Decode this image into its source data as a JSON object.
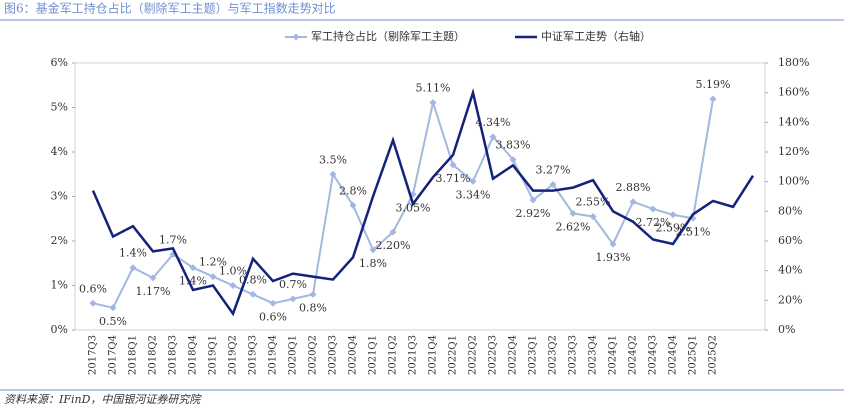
{
  "chart_data": {
    "type": "line",
    "title": "图6：基金军工持仓占比（剔除军工主题）与军工指数走势对比",
    "source": "资料来源：IFinD，中国银河证券研究院",
    "categories": [
      "2017Q3",
      "2017Q4",
      "2018Q1",
      "2018Q2",
      "2018Q3",
      "2018Q4",
      "2019Q1",
      "2019Q2",
      "2019Q3",
      "2019Q4",
      "2020Q1",
      "2020Q2",
      "2020Q3",
      "2020Q4",
      "2021Q1",
      "2021Q2",
      "2021Q3",
      "2021Q4",
      "2022Q1",
      "2022Q2",
      "2022Q3",
      "2022Q4",
      "2023Q1",
      "2023Q2",
      "2023Q3",
      "2023Q4",
      "2024Q1",
      "2024Q2",
      "2024Q3",
      "2024Q4",
      "2025Q1",
      "2025Q2",
      null,
      null
    ],
    "series": [
      {
        "name": "军工持仓占比（剔除军工主题）",
        "color": "#a3b8e0",
        "axis": "y",
        "values": [
          0.6,
          0.5,
          1.4,
          1.17,
          1.7,
          1.4,
          1.2,
          1.0,
          0.8,
          0.6,
          0.7,
          0.8,
          3.5,
          2.8,
          1.8,
          2.2,
          3.05,
          5.11,
          3.71,
          3.34,
          4.34,
          3.83,
          2.92,
          3.27,
          2.62,
          2.55,
          1.93,
          2.88,
          2.72,
          2.59,
          2.51,
          5.19,
          null,
          null
        ],
        "value_labels": [
          "0.6%",
          "0.5%",
          "1.4%",
          "1.17%",
          "1.7%",
          "1.4%",
          "1.2%",
          "1.0%",
          "0.8%",
          "0.6%",
          "0.7%",
          "0.8%",
          "3.5%",
          "2.8%",
          "1.8%",
          "2.20%",
          "3.05%",
          "5.11%",
          "3.71%",
          "3.34%",
          "4.34%",
          "3.83%",
          "2.92%",
          "3.27%",
          "2.62%",
          "2.55%",
          "1.93%",
          "2.88%",
          "2.72%",
          "2.59%",
          "2.51%",
          "5.19%",
          null,
          null
        ]
      },
      {
        "name": "中证军工走势（右轴）",
        "color": "#13237a",
        "axis": "y2",
        "values": [
          94,
          63,
          70,
          53,
          55,
          27,
          30,
          11,
          48,
          33,
          38,
          36,
          34,
          49,
          90,
          128,
          85,
          103,
          118,
          160,
          102,
          111,
          94,
          94,
          96,
          101,
          80,
          73,
          61,
          58,
          78,
          87,
          83,
          104
        ]
      }
    ],
    "ylim": [
      0,
      6
    ],
    "yticks": [
      {
        "value": 0,
        "label": "0%"
      },
      {
        "value": 1,
        "label": "1%"
      },
      {
        "value": 2,
        "label": "2%"
      },
      {
        "value": 3,
        "label": "3%"
      },
      {
        "value": 4,
        "label": "4%"
      },
      {
        "value": 5,
        "label": "5%"
      },
      {
        "value": 6,
        "label": "6%"
      }
    ],
    "y2lim": [
      0,
      180
    ],
    "y2ticks": [
      {
        "value": 0,
        "label": "0%"
      },
      {
        "value": 20,
        "label": "20%"
      },
      {
        "value": 40,
        "label": "40%"
      },
      {
        "value": 60,
        "label": "60%"
      },
      {
        "value": 80,
        "label": "80%"
      },
      {
        "value": 100,
        "label": "100%"
      },
      {
        "value": 120,
        "label": "120%"
      },
      {
        "value": 140,
        "label": "140%"
      },
      {
        "value": 160,
        "label": "160%"
      },
      {
        "value": 180,
        "label": "180%"
      }
    ],
    "legend": "top"
  }
}
